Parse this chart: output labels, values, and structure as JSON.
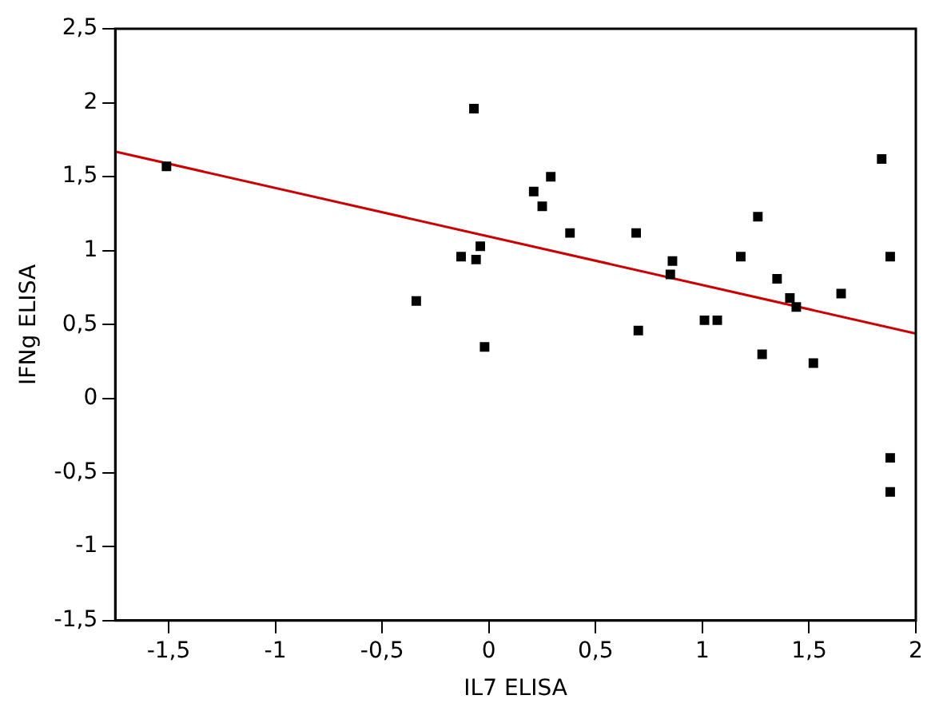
{
  "chart_data": {
    "type": "scatter",
    "xlabel": "IL7 ELISA",
    "ylabel": "IFNg ELISA",
    "xlim": [
      -1.75,
      2
    ],
    "ylim": [
      -1.5,
      2.5
    ],
    "xticks": [
      {
        "value": -1.5,
        "label": "-1,5"
      },
      -1,
      {
        "value": -0.5,
        "label": "-0,5"
      },
      0,
      {
        "value": 0.5,
        "label": "0,5"
      },
      1,
      {
        "value": 1.5,
        "label": "1,5"
      },
      2
    ],
    "yticks": [
      {
        "value": -1.5,
        "label": "-1,5"
      },
      -1,
      {
        "value": -0.5,
        "label": "-0,5"
      },
      0,
      {
        "value": 0.5,
        "label": "0,5"
      },
      1,
      {
        "value": 1.5,
        "label": "1,5"
      },
      2,
      {
        "value": 2.5,
        "label": "2,5"
      }
    ],
    "grid": false,
    "legend": false,
    "marker": "square",
    "series": [
      {
        "color": "#000000",
        "x": [
          -1.51,
          -0.07,
          -0.13,
          -0.06,
          -0.04,
          -0.34,
          -0.02,
          0.21,
          0.29,
          0.25,
          0.38,
          0.69,
          0.7,
          0.86,
          0.85,
          1.01,
          1.07,
          1.18,
          1.26,
          1.28,
          1.35,
          1.41,
          1.44,
          1.52,
          1.65,
          1.84,
          1.88,
          1.88,
          1.88
        ],
        "values": [
          1.57,
          1.96,
          0.96,
          0.94,
          1.03,
          0.66,
          0.35,
          1.4,
          1.5,
          1.3,
          1.12,
          1.12,
          0.46,
          0.93,
          0.84,
          0.53,
          0.53,
          0.96,
          1.23,
          0.3,
          0.81,
          0.68,
          0.62,
          0.24,
          0.71,
          1.62,
          0.96,
          -0.4,
          -0.63
        ]
      },
      {
        "type": "line",
        "color": "#cc0000",
        "x": [
          -1.75,
          2
        ],
        "values": [
          1.67,
          0.44
        ],
        "marker": "none"
      }
    ]
  }
}
